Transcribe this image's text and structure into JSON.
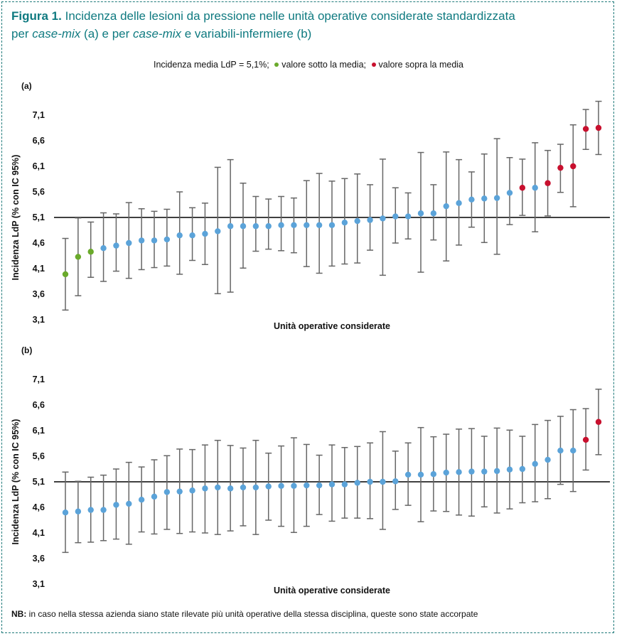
{
  "title": {
    "prefix": "Figura 1.",
    "line1": "Incidenza delle lesioni da pressione nelle unità operative considerate standardizzata",
    "line2a": "per ",
    "line2b": "case-mix",
    "line2c": " (a) e per ",
    "line2d": "case-mix",
    "line2e": " e variabili-infermiere (b)"
  },
  "legend": {
    "mean_text": "Incidenza media LdP = 5,1%;",
    "below_text": "valore sotto la media;",
    "above_text": "valore sopra la media"
  },
  "colors": {
    "below": "#6aaa2b",
    "normal": "#5ba3d9",
    "above": "#c8102e",
    "whisker": "#666666",
    "title": "#0f7a80"
  },
  "note": {
    "label": "NB:",
    "text": " in caso nella stessa azienda siano state rilevate più unità operative della stessa disciplina, queste sono state accorpate"
  },
  "chart_data": [
    {
      "type": "scatter",
      "panel_label": "(a)",
      "xlabel": "Unità operative considerate",
      "ylabel": "Incidenza LdP (% con IC 95%)",
      "yticks": [
        "3,1",
        "3,6",
        "4,1",
        "4,6",
        "5,1",
        "5,6",
        "6,1",
        "6,6",
        "7,1"
      ],
      "ylim": [
        3.1,
        7.1
      ],
      "reference_line": 5.1,
      "points": [
        {
          "y": 3.99,
          "lo": 3.29,
          "hi": 4.69,
          "cat": "below"
        },
        {
          "y": 4.33,
          "lo": 3.57,
          "hi": 5.09,
          "cat": "below"
        },
        {
          "y": 4.43,
          "lo": 3.93,
          "hi": 5.01,
          "cat": "below"
        },
        {
          "y": 4.5,
          "lo": 3.85,
          "hi": 5.19,
          "cat": "normal"
        },
        {
          "y": 4.55,
          "lo": 4.05,
          "hi": 5.17,
          "cat": "normal"
        },
        {
          "y": 4.6,
          "lo": 3.91,
          "hi": 5.39,
          "cat": "normal"
        },
        {
          "y": 4.65,
          "lo": 4.08,
          "hi": 5.27,
          "cat": "normal"
        },
        {
          "y": 4.65,
          "lo": 4.12,
          "hi": 5.22,
          "cat": "normal"
        },
        {
          "y": 4.67,
          "lo": 4.15,
          "hi": 5.26,
          "cat": "normal"
        },
        {
          "y": 4.75,
          "lo": 3.99,
          "hi": 5.6,
          "cat": "normal"
        },
        {
          "y": 4.75,
          "lo": 4.26,
          "hi": 5.29,
          "cat": "normal"
        },
        {
          "y": 4.78,
          "lo": 4.18,
          "hi": 5.38,
          "cat": "normal"
        },
        {
          "y": 4.83,
          "lo": 3.61,
          "hi": 6.08,
          "cat": "normal"
        },
        {
          "y": 4.93,
          "lo": 3.64,
          "hi": 6.23,
          "cat": "normal"
        },
        {
          "y": 4.93,
          "lo": 4.11,
          "hi": 5.77,
          "cat": "normal"
        },
        {
          "y": 4.93,
          "lo": 4.44,
          "hi": 5.51,
          "cat": "normal"
        },
        {
          "y": 4.93,
          "lo": 4.48,
          "hi": 5.46,
          "cat": "normal"
        },
        {
          "y": 4.95,
          "lo": 4.45,
          "hi": 5.51,
          "cat": "normal"
        },
        {
          "y": 4.95,
          "lo": 4.41,
          "hi": 5.48,
          "cat": "normal"
        },
        {
          "y": 4.95,
          "lo": 4.14,
          "hi": 5.82,
          "cat": "normal"
        },
        {
          "y": 4.95,
          "lo": 4.01,
          "hi": 5.96,
          "cat": "normal"
        },
        {
          "y": 4.95,
          "lo": 4.15,
          "hi": 5.81,
          "cat": "normal"
        },
        {
          "y": 5.0,
          "lo": 4.19,
          "hi": 5.86,
          "cat": "normal"
        },
        {
          "y": 5.03,
          "lo": 4.21,
          "hi": 5.95,
          "cat": "normal"
        },
        {
          "y": 5.05,
          "lo": 4.46,
          "hi": 5.74,
          "cat": "normal"
        },
        {
          "y": 5.08,
          "lo": 3.97,
          "hi": 6.24,
          "cat": "normal"
        },
        {
          "y": 5.12,
          "lo": 4.6,
          "hi": 5.68,
          "cat": "normal"
        },
        {
          "y": 5.12,
          "lo": 4.68,
          "hi": 5.58,
          "cat": "normal"
        },
        {
          "y": 5.18,
          "lo": 4.03,
          "hi": 6.37,
          "cat": "normal"
        },
        {
          "y": 5.18,
          "lo": 4.66,
          "hi": 5.74,
          "cat": "normal"
        },
        {
          "y": 5.32,
          "lo": 4.25,
          "hi": 6.38,
          "cat": "normal"
        },
        {
          "y": 5.38,
          "lo": 4.56,
          "hi": 6.23,
          "cat": "normal"
        },
        {
          "y": 5.45,
          "lo": 4.91,
          "hi": 5.99,
          "cat": "normal"
        },
        {
          "y": 5.47,
          "lo": 4.61,
          "hi": 6.34,
          "cat": "normal"
        },
        {
          "y": 5.48,
          "lo": 4.38,
          "hi": 6.64,
          "cat": "normal"
        },
        {
          "y": 5.58,
          "lo": 4.96,
          "hi": 6.27,
          "cat": "normal"
        },
        {
          "y": 5.68,
          "lo": 5.14,
          "hi": 6.24,
          "cat": "above"
        },
        {
          "y": 5.68,
          "lo": 4.82,
          "hi": 6.56,
          "cat": "normal"
        },
        {
          "y": 5.77,
          "lo": 5.13,
          "hi": 6.41,
          "cat": "above"
        },
        {
          "y": 6.07,
          "lo": 5.59,
          "hi": 6.53,
          "cat": "above"
        },
        {
          "y": 6.1,
          "lo": 5.31,
          "hi": 6.91,
          "cat": "above"
        },
        {
          "y": 6.83,
          "lo": 6.43,
          "hi": 7.21,
          "cat": "above"
        },
        {
          "y": 6.85,
          "lo": 6.33,
          "hi": 7.37,
          "cat": "above"
        }
      ]
    },
    {
      "type": "scatter",
      "panel_label": "(b)",
      "xlabel": "Unità operative considerate",
      "ylabel": "Incidenza LdP (% con IC 95%)",
      "yticks": [
        "3,1",
        "3,6",
        "4,1",
        "4,6",
        "5,1",
        "5,6",
        "6,1",
        "6,6",
        "7,1"
      ],
      "ylim": [
        3.1,
        7.1
      ],
      "reference_line": 5.1,
      "points": [
        {
          "y": 4.5,
          "lo": 3.72,
          "hi": 5.29,
          "cat": "normal"
        },
        {
          "y": 4.52,
          "lo": 3.91,
          "hi": 5.11,
          "cat": "normal"
        },
        {
          "y": 4.55,
          "lo": 3.92,
          "hi": 5.19,
          "cat": "normal"
        },
        {
          "y": 4.55,
          "lo": 3.95,
          "hi": 5.23,
          "cat": "normal"
        },
        {
          "y": 4.65,
          "lo": 3.98,
          "hi": 5.35,
          "cat": "normal"
        },
        {
          "y": 4.67,
          "lo": 3.88,
          "hi": 5.48,
          "cat": "normal"
        },
        {
          "y": 4.75,
          "lo": 4.12,
          "hi": 5.39,
          "cat": "normal"
        },
        {
          "y": 4.81,
          "lo": 4.08,
          "hi": 5.53,
          "cat": "normal"
        },
        {
          "y": 4.9,
          "lo": 4.17,
          "hi": 5.61,
          "cat": "normal"
        },
        {
          "y": 4.91,
          "lo": 4.09,
          "hi": 5.74,
          "cat": "normal"
        },
        {
          "y": 4.93,
          "lo": 4.12,
          "hi": 5.73,
          "cat": "normal"
        },
        {
          "y": 4.97,
          "lo": 4.1,
          "hi": 5.82,
          "cat": "normal"
        },
        {
          "y": 4.99,
          "lo": 4.07,
          "hi": 5.91,
          "cat": "normal"
        },
        {
          "y": 4.97,
          "lo": 4.14,
          "hi": 5.81,
          "cat": "normal"
        },
        {
          "y": 4.99,
          "lo": 4.24,
          "hi": 5.76,
          "cat": "normal"
        },
        {
          "y": 4.99,
          "lo": 4.07,
          "hi": 5.91,
          "cat": "normal"
        },
        {
          "y": 5.01,
          "lo": 4.35,
          "hi": 5.66,
          "cat": "normal"
        },
        {
          "y": 5.02,
          "lo": 4.23,
          "hi": 5.8,
          "cat": "normal"
        },
        {
          "y": 5.02,
          "lo": 4.11,
          "hi": 5.96,
          "cat": "normal"
        },
        {
          "y": 5.03,
          "lo": 4.23,
          "hi": 5.83,
          "cat": "normal"
        },
        {
          "y": 5.03,
          "lo": 4.46,
          "hi": 5.62,
          "cat": "normal"
        },
        {
          "y": 5.05,
          "lo": 4.33,
          "hi": 5.82,
          "cat": "normal"
        },
        {
          "y": 5.05,
          "lo": 4.39,
          "hi": 5.77,
          "cat": "normal"
        },
        {
          "y": 5.08,
          "lo": 4.39,
          "hi": 5.79,
          "cat": "normal"
        },
        {
          "y": 5.1,
          "lo": 4.38,
          "hi": 5.86,
          "cat": "normal"
        },
        {
          "y": 5.1,
          "lo": 4.17,
          "hi": 6.08,
          "cat": "normal"
        },
        {
          "y": 5.11,
          "lo": 4.56,
          "hi": 5.7,
          "cat": "normal"
        },
        {
          "y": 5.24,
          "lo": 4.64,
          "hi": 5.86,
          "cat": "normal"
        },
        {
          "y": 5.24,
          "lo": 4.32,
          "hi": 6.16,
          "cat": "normal"
        },
        {
          "y": 5.25,
          "lo": 4.53,
          "hi": 5.98,
          "cat": "normal"
        },
        {
          "y": 5.28,
          "lo": 4.52,
          "hi": 6.03,
          "cat": "normal"
        },
        {
          "y": 5.29,
          "lo": 4.45,
          "hi": 6.13,
          "cat": "normal"
        },
        {
          "y": 5.3,
          "lo": 4.43,
          "hi": 6.14,
          "cat": "normal"
        },
        {
          "y": 5.3,
          "lo": 4.61,
          "hi": 5.99,
          "cat": "normal"
        },
        {
          "y": 5.31,
          "lo": 4.49,
          "hi": 6.15,
          "cat": "normal"
        },
        {
          "y": 5.34,
          "lo": 4.57,
          "hi": 6.11,
          "cat": "normal"
        },
        {
          "y": 5.35,
          "lo": 4.69,
          "hi": 5.99,
          "cat": "normal"
        },
        {
          "y": 5.45,
          "lo": 4.71,
          "hi": 6.22,
          "cat": "normal"
        },
        {
          "y": 5.53,
          "lo": 4.77,
          "hi": 6.3,
          "cat": "normal"
        },
        {
          "y": 5.71,
          "lo": 5.05,
          "hi": 6.38,
          "cat": "normal"
        },
        {
          "y": 5.71,
          "lo": 4.91,
          "hi": 6.51,
          "cat": "normal"
        },
        {
          "y": 5.92,
          "lo": 5.33,
          "hi": 6.53,
          "cat": "above"
        },
        {
          "y": 6.27,
          "lo": 5.63,
          "hi": 6.91,
          "cat": "above"
        }
      ]
    }
  ]
}
